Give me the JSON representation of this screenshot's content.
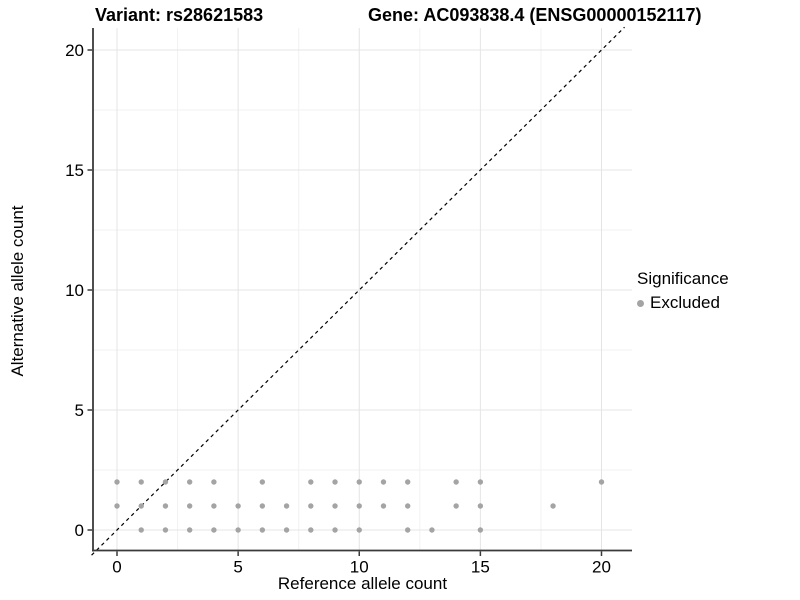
{
  "header": {
    "title_variant": "Variant: rs28621583",
    "title_gene": "Gene: AC093838.4 (ENSG00000152117)"
  },
  "chart_data": {
    "type": "scatter",
    "title": "Variant: rs28621583 / Gene: AC093838.4 (ENSG00000152117)",
    "xlabel": "Reference allele count",
    "ylabel": "Alternative allele count",
    "x_ticks": [
      0,
      5,
      10,
      15,
      20
    ],
    "y_ticks": [
      0,
      5,
      10,
      15,
      20
    ],
    "xlim": [
      -1.05,
      21.3
    ],
    "ylim": [
      -0.95,
      20.95
    ],
    "grid": "major-and-minor",
    "identity_line": {
      "style": "dashed",
      "color": "#000000",
      "equation": "y = x"
    },
    "series": [
      {
        "name": "Excluded",
        "color": "#a4a4a4",
        "points": [
          [
            1,
            0
          ],
          [
            2,
            0
          ],
          [
            3,
            0
          ],
          [
            4,
            0
          ],
          [
            5,
            0
          ],
          [
            6,
            0
          ],
          [
            7,
            0
          ],
          [
            8,
            0
          ],
          [
            9,
            0
          ],
          [
            10,
            0
          ],
          [
            12,
            0
          ],
          [
            13,
            0
          ],
          [
            15,
            0
          ],
          [
            0,
            1
          ],
          [
            1,
            1
          ],
          [
            2,
            1
          ],
          [
            3,
            1
          ],
          [
            4,
            1
          ],
          [
            5,
            1
          ],
          [
            6,
            1
          ],
          [
            7,
            1
          ],
          [
            8,
            1
          ],
          [
            9,
            1
          ],
          [
            10,
            1
          ],
          [
            11,
            1
          ],
          [
            12,
            1
          ],
          [
            14,
            1
          ],
          [
            15,
            1
          ],
          [
            18,
            1
          ],
          [
            0,
            2
          ],
          [
            1,
            2
          ],
          [
            2,
            2
          ],
          [
            3,
            2
          ],
          [
            4,
            2
          ],
          [
            6,
            2
          ],
          [
            8,
            2
          ],
          [
            9,
            2
          ],
          [
            10,
            2
          ],
          [
            11,
            2
          ],
          [
            12,
            2
          ],
          [
            14,
            2
          ],
          [
            15,
            2
          ],
          [
            20,
            2
          ]
        ]
      }
    ],
    "colors": {
      "point": "#a4a4a4",
      "grid_major": "#e4e4e4",
      "grid_minor": "#f2f2f2",
      "axis_line": "#3a3a3a",
      "tick_text": "#000000"
    },
    "legend_position": "right"
  },
  "legend": {
    "title": "Significance",
    "items": [
      {
        "label": "Excluded",
        "color": "#a4a4a4"
      }
    ]
  }
}
